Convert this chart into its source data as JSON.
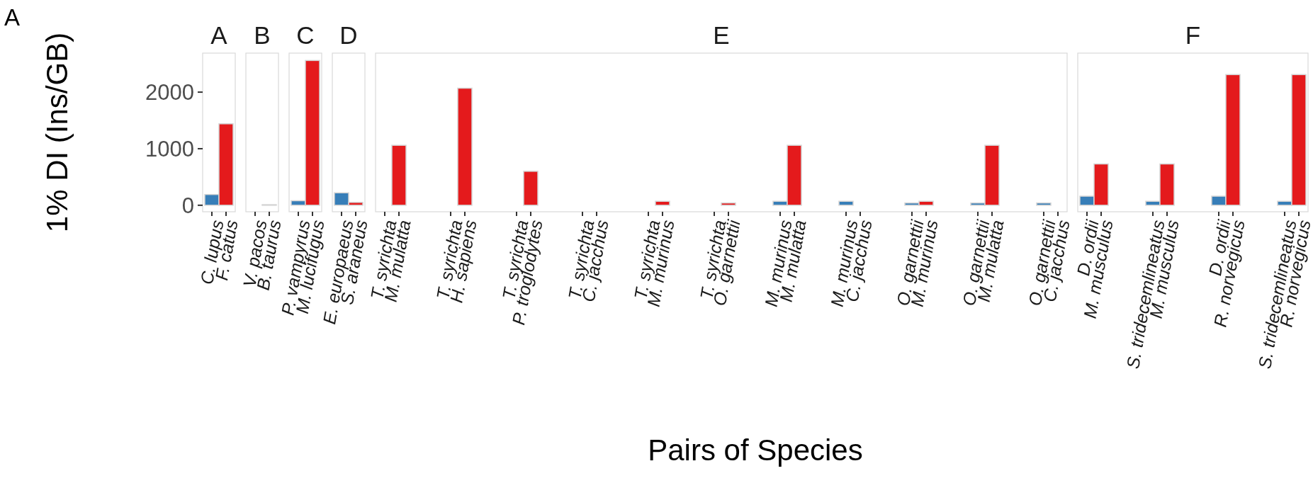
{
  "chart_data": [
    {
      "type": "bar",
      "title": "A",
      "ylabel": "1% DI (Ins/GB)",
      "annotations": [
        "A"
      ],
      "categories": [
        "C. lupus",
        "F. catus"
      ],
      "values": [
        190,
        1440
      ],
      "colors": [
        "#377eb8",
        "#e41a1c"
      ],
      "ylim": [
        -115,
        2690
      ],
      "yticks": [
        0,
        1000,
        2000
      ]
    },
    {
      "type": "bar",
      "title": "B",
      "categories": [
        "V. pacos",
        "B. taurus"
      ],
      "values": [
        0,
        10
      ],
      "colors": [
        "#377eb8",
        "#e41a1c"
      ],
      "ylim": [
        -115,
        2690
      ],
      "tick_labels": "x"
    },
    {
      "type": "bar",
      "title": "C",
      "categories": [
        "P. vampyrus",
        "M. lucifugus"
      ],
      "values": [
        80,
        2560
      ],
      "colors": [
        "#377eb8",
        "#e41a1c"
      ],
      "ylim": [
        -115,
        2690
      ],
      "tick_labels": "x"
    },
    {
      "type": "bar",
      "title": "D",
      "categories": [
        "E. europaeus",
        "S. araneus"
      ],
      "values": [
        220,
        50
      ],
      "colors": [
        "#377eb8",
        "#e41a1c"
      ],
      "ylim": [
        -115,
        2690
      ],
      "tick_labels": "x"
    },
    {
      "type": "bar",
      "title": "E",
      "xlabel": "Pairs of Species",
      "categories": [
        "T. syrichta",
        "M. mulatta",
        "T. syrichta",
        "H. sapiens",
        "T. syrichta",
        "P. troglodytes",
        "T. syrichta",
        "C. jacchus",
        "T. syrichta",
        "M. murinus",
        "T. syrichta",
        "O. garnettii",
        "M. murinus",
        "M. mulatta",
        "M. murinus",
        "C. jacchus",
        "O. garnettii",
        "M. murinus",
        "O. garnettii",
        "M. mulatta",
        "O. garnettii",
        "C. jacchus"
      ],
      "values": [
        0,
        1060,
        0,
        2070,
        0,
        600,
        0,
        0,
        0,
        70,
        0,
        40,
        70,
        1060,
        70,
        0,
        40,
        70,
        40,
        1060,
        40,
        0
      ],
      "colors": [
        "#377eb8",
        "#e41a1c",
        "#377eb8",
        "#e41a1c",
        "#377eb8",
        "#e41a1c",
        "#377eb8",
        "#e41a1c",
        "#377eb8",
        "#e41a1c",
        "#377eb8",
        "#e41a1c",
        "#377eb8",
        "#e41a1c",
        "#377eb8",
        "#e41a1c",
        "#377eb8",
        "#e41a1c",
        "#377eb8",
        "#e41a1c",
        "#377eb8",
        "#e41a1c"
      ],
      "ylim": [
        -115,
        2690
      ],
      "tick_labels": "x"
    },
    {
      "type": "bar",
      "title": "F",
      "categories": [
        "D. ordii",
        "M. musculus",
        "S. tridecemlineatus",
        "M. musculus",
        "D. ordii",
        "R. norvegicus",
        "S. tridecemlineatus",
        "R. norvegicus"
      ],
      "values": [
        160,
        730,
        70,
        730,
        160,
        2310,
        70,
        2310
      ],
      "colors": [
        "#377eb8",
        "#e41a1c",
        "#377eb8",
        "#e41a1c",
        "#377eb8",
        "#e41a1c",
        "#377eb8",
        "#e41a1c"
      ],
      "ylim": [
        -115,
        2690
      ],
      "tick_labels": "x"
    }
  ]
}
